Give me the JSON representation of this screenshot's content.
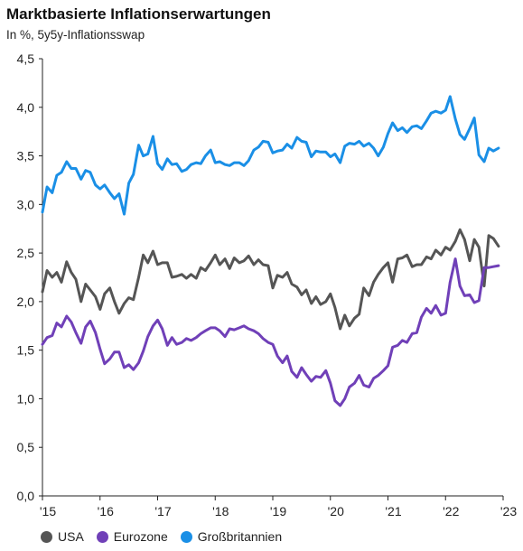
{
  "title": "Marktbasierte Inflationserwartungen",
  "subtitle": "In %, 5y5y-Inflationsswap",
  "colors": {
    "USA": "#555555",
    "Eurozone": "#7040b8",
    "Großbritannien": "#1a8fe6"
  },
  "chart_data": {
    "type": "line",
    "title": "Marktbasierte Inflationserwartungen",
    "subtitle": "In %, 5y5y-Inflationsswap",
    "xlabel": "",
    "ylabel": "",
    "xlim": [
      2015.0,
      2023.0
    ],
    "ylim": [
      0.0,
      4.5
    ],
    "grid": false,
    "legend_position": "bottom",
    "y_ticks": [
      "4,5",
      "4,0",
      "3,5",
      "3,0",
      "2,5",
      "2,0",
      "1,5",
      "1,0",
      "0,5",
      "0,0"
    ],
    "x_ticks": [
      "'15",
      "'16",
      "'17",
      "'18",
      "'19",
      "'20",
      "'21",
      "'22",
      "'23"
    ],
    "series": [
      {
        "name": "USA",
        "color": "#555555",
        "x": [
          2015.0,
          2015.08,
          2015.17,
          2015.25,
          2015.33,
          2015.42,
          2015.5,
          2015.58,
          2015.67,
          2015.75,
          2015.83,
          2015.92,
          2016.0,
          2016.08,
          2016.17,
          2016.25,
          2016.33,
          2016.42,
          2016.5,
          2016.58,
          2016.67,
          2016.75,
          2016.83,
          2016.92,
          2017.0,
          2017.08,
          2017.17,
          2017.25,
          2017.33,
          2017.42,
          2017.5,
          2017.58,
          2017.67,
          2017.75,
          2017.83,
          2017.92,
          2018.0,
          2018.08,
          2018.17,
          2018.25,
          2018.33,
          2018.42,
          2018.5,
          2018.58,
          2018.67,
          2018.75,
          2018.83,
          2018.92,
          2019.0,
          2019.08,
          2019.17,
          2019.25,
          2019.33,
          2019.42,
          2019.5,
          2019.58,
          2019.67,
          2019.75,
          2019.83,
          2019.92,
          2020.0,
          2020.08,
          2020.17,
          2020.25,
          2020.33,
          2020.42,
          2020.5,
          2020.58,
          2020.67,
          2020.75,
          2020.83,
          2020.92,
          2021.0,
          2021.08,
          2021.17,
          2021.25,
          2021.33,
          2021.42,
          2021.5,
          2021.58,
          2021.67,
          2021.75,
          2021.83,
          2021.92,
          2022.0,
          2022.08,
          2022.17,
          2022.25,
          2022.33,
          2022.42,
          2022.5,
          2022.58,
          2022.67,
          2022.75,
          2022.83,
          2022.92
        ],
        "values": [
          2.1,
          2.32,
          2.25,
          2.3,
          2.2,
          2.41,
          2.3,
          2.23,
          2.0,
          2.18,
          2.12,
          2.05,
          1.92,
          2.08,
          2.14,
          2.0,
          1.88,
          1.98,
          2.04,
          2.02,
          2.25,
          2.48,
          2.4,
          2.52,
          2.38,
          2.4,
          2.4,
          2.25,
          2.26,
          2.28,
          2.24,
          2.28,
          2.24,
          2.35,
          2.32,
          2.4,
          2.48,
          2.38,
          2.44,
          2.34,
          2.45,
          2.4,
          2.42,
          2.47,
          2.38,
          2.43,
          2.38,
          2.37,
          2.14,
          2.27,
          2.25,
          2.3,
          2.18,
          2.15,
          2.07,
          2.12,
          1.98,
          2.05,
          1.97,
          2.0,
          2.08,
          1.94,
          1.72,
          1.86,
          1.75,
          1.83,
          1.87,
          2.14,
          2.06,
          2.2,
          2.28,
          2.35,
          2.4,
          2.2,
          2.44,
          2.45,
          2.48,
          2.36,
          2.38,
          2.38,
          2.46,
          2.44,
          2.53,
          2.48,
          2.56,
          2.53,
          2.62,
          2.74,
          2.64,
          2.42,
          2.64,
          2.56,
          2.16,
          2.68,
          2.65,
          2.57
        ]
      },
      {
        "name": "Eurozone",
        "color": "#7040b8",
        "x": [
          2015.0,
          2015.08,
          2015.17,
          2015.25,
          2015.33,
          2015.42,
          2015.5,
          2015.58,
          2015.67,
          2015.75,
          2015.83,
          2015.92,
          2016.0,
          2016.08,
          2016.17,
          2016.25,
          2016.33,
          2016.42,
          2016.5,
          2016.58,
          2016.67,
          2016.75,
          2016.83,
          2016.92,
          2017.0,
          2017.08,
          2017.17,
          2017.25,
          2017.33,
          2017.42,
          2017.5,
          2017.58,
          2017.67,
          2017.75,
          2017.83,
          2017.92,
          2018.0,
          2018.08,
          2018.17,
          2018.25,
          2018.33,
          2018.42,
          2018.5,
          2018.58,
          2018.67,
          2018.75,
          2018.83,
          2018.92,
          2019.0,
          2019.08,
          2019.17,
          2019.25,
          2019.33,
          2019.42,
          2019.5,
          2019.58,
          2019.67,
          2019.75,
          2019.83,
          2019.92,
          2020.0,
          2020.08,
          2020.17,
          2020.25,
          2020.33,
          2020.42,
          2020.5,
          2020.58,
          2020.67,
          2020.75,
          2020.83,
          2020.92,
          2021.0,
          2021.08,
          2021.17,
          2021.25,
          2021.33,
          2021.42,
          2021.5,
          2021.58,
          2021.67,
          2021.75,
          2021.83,
          2021.92,
          2022.0,
          2022.08,
          2022.17,
          2022.25,
          2022.33,
          2022.42,
          2022.5,
          2022.58,
          2022.67,
          2022.75,
          2022.83,
          2022.92
        ],
        "values": [
          1.56,
          1.63,
          1.65,
          1.78,
          1.74,
          1.85,
          1.79,
          1.68,
          1.57,
          1.74,
          1.8,
          1.68,
          1.51,
          1.36,
          1.41,
          1.48,
          1.48,
          1.32,
          1.35,
          1.3,
          1.37,
          1.49,
          1.64,
          1.75,
          1.81,
          1.72,
          1.55,
          1.63,
          1.56,
          1.58,
          1.62,
          1.6,
          1.63,
          1.67,
          1.7,
          1.73,
          1.73,
          1.7,
          1.64,
          1.72,
          1.71,
          1.73,
          1.75,
          1.72,
          1.7,
          1.67,
          1.62,
          1.58,
          1.56,
          1.44,
          1.37,
          1.44,
          1.28,
          1.22,
          1.32,
          1.25,
          1.18,
          1.23,
          1.22,
          1.29,
          1.16,
          0.98,
          0.93,
          1.0,
          1.12,
          1.16,
          1.24,
          1.14,
          1.12,
          1.21,
          1.24,
          1.29,
          1.34,
          1.53,
          1.55,
          1.6,
          1.58,
          1.67,
          1.68,
          1.84,
          1.93,
          1.88,
          1.96,
          1.86,
          1.88,
          2.2,
          2.44,
          2.16,
          2.06,
          2.07,
          1.99,
          2.01,
          2.35,
          2.35,
          2.36,
          2.37
        ]
      },
      {
        "name": "Großbritannien",
        "color": "#1a8fe6",
        "x": [
          2015.0,
          2015.08,
          2015.17,
          2015.25,
          2015.33,
          2015.42,
          2015.5,
          2015.58,
          2015.67,
          2015.75,
          2015.83,
          2015.92,
          2016.0,
          2016.08,
          2016.17,
          2016.25,
          2016.33,
          2016.42,
          2016.5,
          2016.58,
          2016.67,
          2016.75,
          2016.83,
          2016.92,
          2017.0,
          2017.08,
          2017.17,
          2017.25,
          2017.33,
          2017.42,
          2017.5,
          2017.58,
          2017.67,
          2017.75,
          2017.83,
          2017.92,
          2018.0,
          2018.08,
          2018.17,
          2018.25,
          2018.33,
          2018.42,
          2018.5,
          2018.58,
          2018.67,
          2018.75,
          2018.83,
          2018.92,
          2019.0,
          2019.08,
          2019.17,
          2019.25,
          2019.33,
          2019.42,
          2019.5,
          2019.58,
          2019.67,
          2019.75,
          2019.83,
          2019.92,
          2020.0,
          2020.08,
          2020.17,
          2020.25,
          2020.33,
          2020.42,
          2020.5,
          2020.58,
          2020.67,
          2020.75,
          2020.83,
          2020.92,
          2021.0,
          2021.08,
          2021.17,
          2021.25,
          2021.33,
          2021.42,
          2021.5,
          2021.58,
          2021.67,
          2021.75,
          2021.83,
          2021.92,
          2022.0,
          2022.08,
          2022.17,
          2022.25,
          2022.33,
          2022.42,
          2022.5,
          2022.58,
          2022.67,
          2022.75,
          2022.83,
          2022.92
        ],
        "values": [
          2.92,
          3.18,
          3.12,
          3.3,
          3.33,
          3.44,
          3.37,
          3.37,
          3.26,
          3.35,
          3.33,
          3.2,
          3.16,
          3.2,
          3.12,
          3.06,
          3.11,
          2.9,
          3.22,
          3.31,
          3.61,
          3.5,
          3.52,
          3.7,
          3.42,
          3.36,
          3.47,
          3.41,
          3.42,
          3.34,
          3.36,
          3.41,
          3.43,
          3.42,
          3.5,
          3.56,
          3.43,
          3.44,
          3.41,
          3.4,
          3.43,
          3.43,
          3.4,
          3.45,
          3.56,
          3.59,
          3.65,
          3.64,
          3.53,
          3.55,
          3.56,
          3.62,
          3.58,
          3.69,
          3.65,
          3.64,
          3.49,
          3.55,
          3.54,
          3.54,
          3.49,
          3.52,
          3.43,
          3.6,
          3.63,
          3.62,
          3.65,
          3.6,
          3.63,
          3.58,
          3.5,
          3.59,
          3.73,
          3.84,
          3.76,
          3.79,
          3.74,
          3.8,
          3.81,
          3.78,
          3.86,
          3.94,
          3.96,
          3.94,
          3.97,
          4.11,
          3.88,
          3.72,
          3.67,
          3.78,
          3.89,
          3.51,
          3.44,
          3.58,
          3.55,
          3.58
        ]
      }
    ]
  }
}
